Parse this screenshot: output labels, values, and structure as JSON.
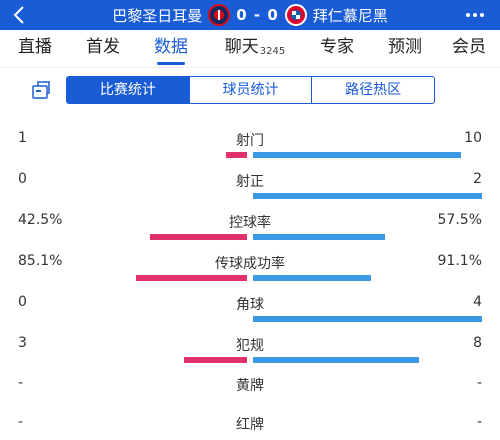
{
  "header": {
    "home_team": "巴黎圣日耳曼",
    "score": "0 - 0",
    "away_team": "拜仁慕尼黑",
    "bar_color": "#1a5bd6",
    "icons": {
      "back": "chevron-left-icon",
      "more": "more-dots-icon",
      "home_crest": "psg-crest-icon",
      "away_crest": "bayern-crest-icon"
    }
  },
  "nav": {
    "tabs": [
      {
        "label": "直播"
      },
      {
        "label": "首发"
      },
      {
        "label": "数据",
        "active": true
      },
      {
        "label": "聊天",
        "count": "3245"
      },
      {
        "label": "专家"
      },
      {
        "label": "预测"
      },
      {
        "label": "会员"
      }
    ]
  },
  "subtabs": {
    "share_icon": "share-icon",
    "items": [
      {
        "label": "比赛统计",
        "active": true
      },
      {
        "label": "球员统计"
      },
      {
        "label": "路径热区"
      }
    ]
  },
  "colors": {
    "home_bar": "#e0316a",
    "away_bar": "#3a98e4"
  },
  "stats": [
    {
      "name": "射门",
      "left": "1",
      "right": "10",
      "left_share": 0.091,
      "right_share": 0.909
    },
    {
      "name": "射正",
      "left": "0",
      "right": "2",
      "left_share": 0,
      "right_share": 1
    },
    {
      "name": "控球率",
      "left": "42.5%",
      "right": "57.5%",
      "left_share": 0.425,
      "right_share": 0.575
    },
    {
      "name": "传球成功率",
      "left": "85.1%",
      "right": "91.1%",
      "left_share": 0.483,
      "right_share": 0.517
    },
    {
      "name": "角球",
      "left": "0",
      "right": "4",
      "left_share": 0,
      "right_share": 1
    },
    {
      "name": "犯规",
      "left": "3",
      "right": "8",
      "left_share": 0.273,
      "right_share": 0.727
    },
    {
      "name": "黄牌",
      "left": "-",
      "right": "-",
      "left_share": 0,
      "right_share": 0
    },
    {
      "name": "红牌",
      "left": "-",
      "right": "-",
      "left_share": 0,
      "right_share": 0
    }
  ]
}
